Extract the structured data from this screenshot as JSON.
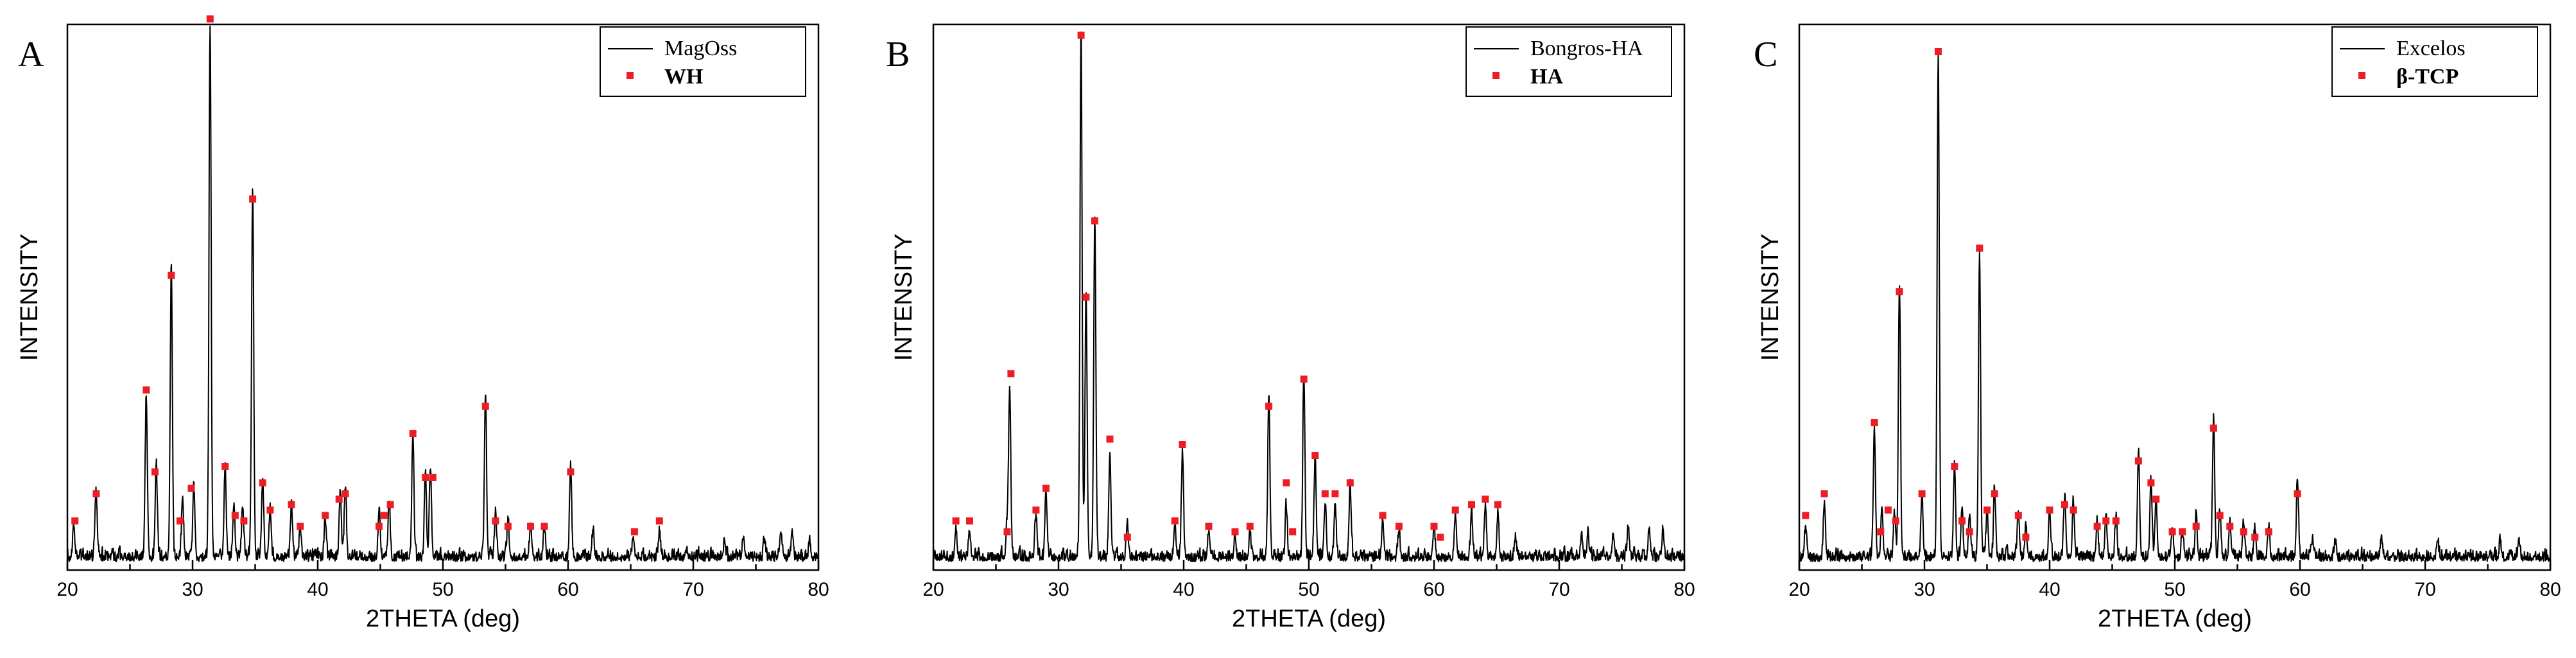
{
  "colors": {
    "trace": "#000000",
    "marker": "#ee1c24",
    "axis": "#000000",
    "background": "#ffffff"
  },
  "chart_data": [
    {
      "type": "line",
      "panel_letter": "A",
      "xlabel": "2THETA (deg)",
      "ylabel": "INTENSITY",
      "xlim": [
        20,
        80
      ],
      "ylim": [
        0,
        100
      ],
      "xticks": [
        20,
        30,
        40,
        50,
        60,
        70,
        80
      ],
      "legend": {
        "placement": "top-right"
      },
      "series": [
        {
          "name": "MagOss",
          "kind": "line",
          "peaks": [
            [
              20.5,
              6
            ],
            [
              22.3,
              12
            ],
            [
              26.3,
              30
            ],
            [
              27.1,
              17
            ],
            [
              28.3,
              54
            ],
            [
              29.2,
              11
            ],
            [
              30.1,
              14
            ],
            [
              31.4,
              98
            ],
            [
              32.6,
              17
            ],
            [
              33.3,
              10
            ],
            [
              34.0,
              9
            ],
            [
              34.8,
              68
            ],
            [
              35.6,
              13
            ],
            [
              36.2,
              9
            ],
            [
              37.9,
              10
            ],
            [
              38.6,
              6
            ],
            [
              40.6,
              7
            ],
            [
              41.8,
              12
            ],
            [
              42.2,
              13
            ],
            [
              44.9,
              8
            ],
            [
              45.7,
              10
            ],
            [
              47.6,
              23
            ],
            [
              48.6,
              16
            ],
            [
              49.0,
              17
            ],
            [
              53.4,
              30
            ],
            [
              54.2,
              8
            ],
            [
              55.2,
              7
            ],
            [
              57.0,
              6
            ],
            [
              58.1,
              6
            ],
            [
              60.2,
              17
            ],
            [
              62.0,
              5
            ],
            [
              65.2,
              4
            ],
            [
              67.3,
              5
            ],
            [
              72.5,
              3
            ],
            [
              74.0,
              4
            ],
            [
              75.7,
              3
            ],
            [
              77.0,
              5
            ],
            [
              77.9,
              5
            ],
            [
              79.3,
              3
            ]
          ]
        },
        {
          "name": "WH",
          "kind": "markers",
          "points": [
            [
              20.6,
              9
            ],
            [
              22.3,
              14
            ],
            [
              26.3,
              33
            ],
            [
              27.0,
              18
            ],
            [
              28.3,
              54
            ],
            [
              29.0,
              9
            ],
            [
              29.9,
              15
            ],
            [
              31.4,
              101
            ],
            [
              32.6,
              19
            ],
            [
              33.4,
              10
            ],
            [
              34.1,
              9
            ],
            [
              34.8,
              68
            ],
            [
              35.6,
              16
            ],
            [
              36.2,
              11
            ],
            [
              37.9,
              12
            ],
            [
              38.6,
              8
            ],
            [
              40.6,
              10
            ],
            [
              41.7,
              13
            ],
            [
              42.2,
              14
            ],
            [
              44.9,
              8
            ],
            [
              45.3,
              10
            ],
            [
              45.8,
              12
            ],
            [
              47.6,
              25
            ],
            [
              48.6,
              17
            ],
            [
              49.2,
              17
            ],
            [
              53.4,
              30
            ],
            [
              54.2,
              9
            ],
            [
              55.2,
              8
            ],
            [
              57.0,
              8
            ],
            [
              58.1,
              8
            ],
            [
              60.2,
              18
            ],
            [
              65.3,
              7
            ],
            [
              67.3,
              9
            ]
          ]
        }
      ]
    },
    {
      "type": "line",
      "panel_letter": "B",
      "xlabel": "2THETA (deg)",
      "ylabel": "INTENSITY",
      "xlim": [
        20,
        80
      ],
      "ylim": [
        0,
        100
      ],
      "xticks": [
        20,
        30,
        40,
        50,
        60,
        70,
        80
      ],
      "legend": {
        "placement": "top-right"
      },
      "series": [
        {
          "name": "Bongros-HA",
          "kind": "line",
          "peaks": [
            [
              21.8,
              5
            ],
            [
              22.9,
              5
            ],
            [
              25.9,
              6
            ],
            [
              26.1,
              31
            ],
            [
              28.2,
              8
            ],
            [
              29.0,
              12
            ],
            [
              31.8,
              96
            ],
            [
              32.2,
              48
            ],
            [
              32.9,
              63
            ],
            [
              34.1,
              19
            ],
            [
              35.5,
              5
            ],
            [
              39.3,
              6
            ],
            [
              39.9,
              19
            ],
            [
              42.0,
              5
            ],
            [
              44.1,
              4
            ],
            [
              45.3,
              5
            ],
            [
              46.8,
              30
            ],
            [
              48.2,
              9
            ],
            [
              49.6,
              34
            ],
            [
              50.5,
              19
            ],
            [
              51.3,
              10
            ],
            [
              52.1,
              10
            ],
            [
              53.3,
              13
            ],
            [
              55.9,
              7
            ],
            [
              57.2,
              5
            ],
            [
              60.0,
              6
            ],
            [
              61.7,
              8
            ],
            [
              63.0,
              8
            ],
            [
              64.1,
              10
            ],
            [
              65.1,
              8
            ],
            [
              66.5,
              4
            ],
            [
              71.8,
              4
            ],
            [
              72.3,
              4
            ],
            [
              74.3,
              4
            ],
            [
              75.5,
              5
            ],
            [
              77.2,
              5
            ],
            [
              78.3,
              5
            ]
          ]
        },
        {
          "name": "HA",
          "kind": "markers",
          "points": [
            [
              21.8,
              9
            ],
            [
              22.9,
              9
            ],
            [
              25.9,
              7
            ],
            [
              26.2,
              36
            ],
            [
              28.2,
              11
            ],
            [
              29.0,
              15
            ],
            [
              31.8,
              98
            ],
            [
              32.2,
              50
            ],
            [
              32.9,
              64
            ],
            [
              34.1,
              24
            ],
            [
              35.5,
              6
            ],
            [
              39.3,
              9
            ],
            [
              39.9,
              23
            ],
            [
              42.0,
              8
            ],
            [
              44.1,
              7
            ],
            [
              45.3,
              8
            ],
            [
              46.8,
              30
            ],
            [
              48.2,
              16
            ],
            [
              48.7,
              7
            ],
            [
              49.6,
              35
            ],
            [
              50.5,
              21
            ],
            [
              51.3,
              14
            ],
            [
              52.1,
              14
            ],
            [
              53.3,
              16
            ],
            [
              55.9,
              10
            ],
            [
              57.2,
              8
            ],
            [
              60.0,
              8
            ],
            [
              60.5,
              6
            ],
            [
              61.7,
              11
            ],
            [
              63.0,
              12
            ],
            [
              64.1,
              13
            ],
            [
              65.1,
              12
            ]
          ]
        }
      ]
    },
    {
      "type": "line",
      "panel_letter": "C",
      "xlabel": "2THETA (deg)",
      "ylabel": "INTENSITY",
      "xlim": [
        20,
        80
      ],
      "ylim": [
        0,
        100
      ],
      "xticks": [
        20,
        30,
        40,
        50,
        60,
        70,
        80
      ],
      "legend": {
        "placement": "top-right"
      },
      "series": [
        {
          "name": "Excelos",
          "kind": "line",
          "peaks": [
            [
              20.5,
              6
            ],
            [
              22.0,
              10
            ],
            [
              26.0,
              24
            ],
            [
              26.6,
              9
            ],
            [
              27.6,
              8
            ],
            [
              28.0,
              50
            ],
            [
              29.8,
              12
            ],
            [
              31.1,
              93
            ],
            [
              32.4,
              17
            ],
            [
              33.0,
              9
            ],
            [
              33.6,
              8
            ],
            [
              34.4,
              56
            ],
            [
              35.0,
              9
            ],
            [
              35.6,
              12
            ],
            [
              37.5,
              8
            ],
            [
              38.1,
              6
            ],
            [
              40.0,
              9
            ],
            [
              41.2,
              11
            ],
            [
              41.9,
              10
            ],
            [
              43.8,
              7
            ],
            [
              44.5,
              8
            ],
            [
              45.3,
              8
            ],
            [
              47.1,
              20
            ],
            [
              48.1,
              14
            ],
            [
              48.5,
              11
            ],
            [
              49.8,
              6
            ],
            [
              50.6,
              5
            ],
            [
              51.7,
              8
            ],
            [
              53.1,
              26
            ],
            [
              53.6,
              9
            ],
            [
              54.4,
              7
            ],
            [
              55.5,
              6
            ],
            [
              56.4,
              5
            ],
            [
              57.5,
              6
            ],
            [
              59.8,
              14
            ],
            [
              61.0,
              3
            ],
            [
              62.8,
              3
            ],
            [
              66.5,
              4
            ],
            [
              71.0,
              3
            ],
            [
              76.0,
              3
            ],
            [
              77.5,
              3
            ]
          ]
        },
        {
          "name": "β-TCP",
          "kind": "markers",
          "points": [
            [
              20.5,
              10
            ],
            [
              22.0,
              14
            ],
            [
              26.0,
              27
            ],
            [
              26.5,
              7
            ],
            [
              27.1,
              11
            ],
            [
              27.7,
              9
            ],
            [
              28.0,
              51
            ],
            [
              29.8,
              14
            ],
            [
              31.1,
              95
            ],
            [
              32.4,
              19
            ],
            [
              33.0,
              9
            ],
            [
              33.6,
              7
            ],
            [
              34.4,
              59
            ],
            [
              35.0,
              11
            ],
            [
              35.6,
              14
            ],
            [
              37.5,
              10
            ],
            [
              38.1,
              6
            ],
            [
              40.0,
              11
            ],
            [
              41.2,
              12
            ],
            [
              41.9,
              11
            ],
            [
              43.8,
              8
            ],
            [
              44.5,
              9
            ],
            [
              45.3,
              9
            ],
            [
              47.1,
              20
            ],
            [
              48.1,
              16
            ],
            [
              48.5,
              13
            ],
            [
              49.8,
              7
            ],
            [
              50.6,
              7
            ],
            [
              51.7,
              8
            ],
            [
              53.1,
              26
            ],
            [
              53.6,
              10
            ],
            [
              54.4,
              8
            ],
            [
              55.5,
              7
            ],
            [
              56.4,
              6
            ],
            [
              57.5,
              7
            ],
            [
              59.8,
              14
            ]
          ]
        }
      ]
    }
  ]
}
